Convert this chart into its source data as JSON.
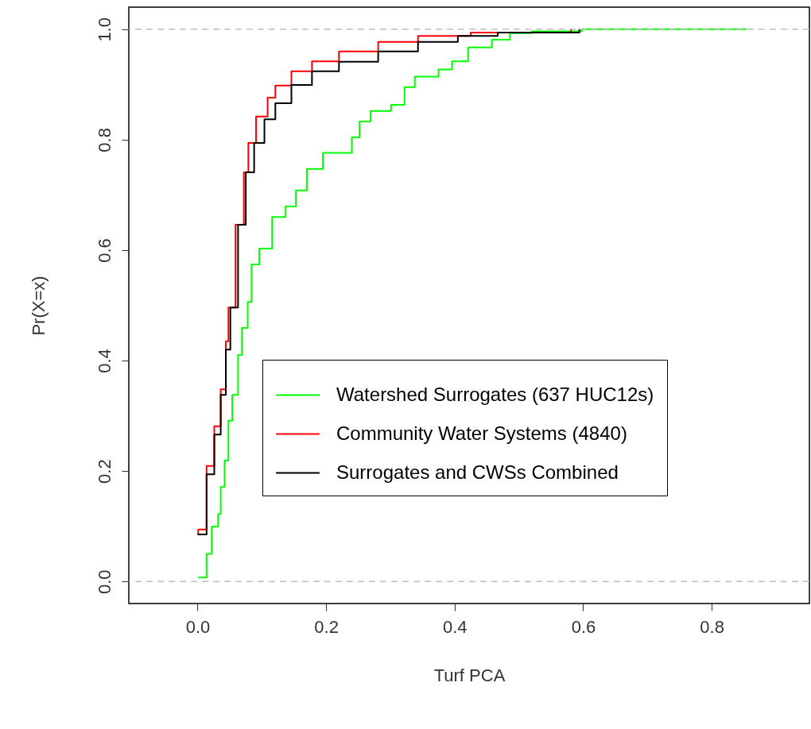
{
  "chart_data": {
    "type": "step",
    "xlabel": "Turf PCA",
    "ylabel": "Pr(X=x)",
    "xlim": [
      -0.107,
      0.952
    ],
    "ylim": [
      -0.04,
      1.04
    ],
    "xticks": [
      {
        "value": 0,
        "label": "0.0"
      },
      0.2,
      0.4,
      0.6,
      0.8
    ],
    "yticks": [
      {
        "value": 0,
        "label": "0.0"
      },
      0.2,
      0.4,
      0.6,
      0.8,
      {
        "value": 1,
        "label": "1.0"
      }
    ],
    "grid": false,
    "legend": "right",
    "marker": "none",
    "line_style": "solid",
    "ref_lines": [
      {
        "axis": "y",
        "value": 0,
        "label": null,
        "color": "#bebebe",
        "line_style": "dashed"
      },
      {
        "axis": "y",
        "value": 1,
        "label": null,
        "color": "#bebebe",
        "line_style": "dashed"
      }
    ],
    "series": [
      {
        "name": "Watershed Surrogates (637 HUC12s)",
        "color": "#00ff00",
        "x": [
          0.001,
          0.014,
          0.022,
          0.032,
          0.036,
          0.042,
          0.048,
          0.054,
          0.063,
          0.069,
          0.078,
          0.084,
          0.096,
          0.116,
          0.137,
          0.153,
          0.17,
          0.195,
          0.24,
          0.252,
          0.269,
          0.301,
          0.322,
          0.338,
          0.375,
          0.396,
          0.421,
          0.458,
          0.486,
          0.52,
          0.598,
          0.854
        ],
        "values": [
          0.007,
          0.05,
          0.099,
          0.122,
          0.171,
          0.219,
          0.291,
          0.338,
          0.41,
          0.459,
          0.506,
          0.574,
          0.603,
          0.66,
          0.679,
          0.708,
          0.747,
          0.776,
          0.804,
          0.833,
          0.852,
          0.863,
          0.895,
          0.914,
          0.927,
          0.942,
          0.967,
          0.981,
          0.993,
          0.996,
          1.0,
          1.0
        ]
      },
      {
        "name": "Community Water Systems (4840)",
        "color": "#ff0000",
        "x": [
          0.0,
          0.001,
          0.014,
          0.026,
          0.036,
          0.044,
          0.048,
          0.059,
          0.072,
          0.079,
          0.091,
          0.109,
          0.121,
          0.146,
          0.178,
          0.22,
          0.281,
          0.343,
          0.425,
          0.581
        ],
        "values": [
          0.085,
          0.094,
          0.209,
          0.281,
          0.348,
          0.435,
          0.496,
          0.646,
          0.741,
          0.794,
          0.842,
          0.876,
          0.898,
          0.924,
          0.942,
          0.96,
          0.977,
          0.988,
          0.994,
          1.0
        ]
      },
      {
        "name": "Surrogates and CWSs Combined",
        "color": "#000000",
        "x": [
          0.0,
          0.014,
          0.026,
          0.036,
          0.044,
          0.051,
          0.063,
          0.075,
          0.088,
          0.104,
          0.121,
          0.146,
          0.178,
          0.22,
          0.281,
          0.343,
          0.405,
          0.467,
          0.594
        ],
        "values": [
          0.085,
          0.194,
          0.266,
          0.338,
          0.42,
          0.496,
          0.646,
          0.741,
          0.794,
          0.837,
          0.866,
          0.899,
          0.924,
          0.941,
          0.96,
          0.977,
          0.988,
          0.994,
          1.0
        ]
      }
    ]
  }
}
